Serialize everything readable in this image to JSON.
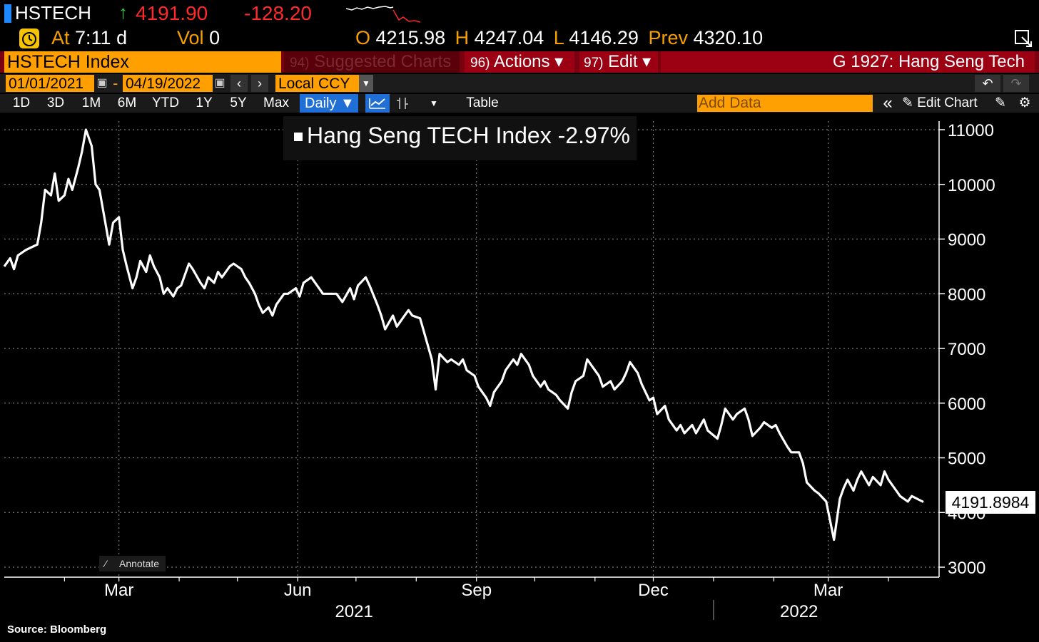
{
  "header": {
    "ticker": "HSTECH",
    "last_price": "4191.90",
    "change": "-128.20",
    "time_label": "At",
    "time_value": "7:11 d",
    "vol_label": "Vol",
    "vol_value": "0",
    "open_label": "O",
    "open_value": "4215.98",
    "high_label": "H",
    "high_value": "4247.04",
    "low_label": "L",
    "low_value": "4146.29",
    "prev_label": "Prev",
    "prev_value": "4320.10"
  },
  "command_bar": {
    "security": "HSTECH Index",
    "suggested_num": "94)",
    "suggested_label": "Suggested Charts",
    "actions_num": "96)",
    "actions_label": "Actions ▾",
    "edit_num": "97)",
    "edit_label": "Edit ▾",
    "chart_title": "G 1927: Hang Seng Tech"
  },
  "date_range": {
    "start": "01/01/2021",
    "separator": "-",
    "end": "04/19/2022",
    "currency": "Local CCY"
  },
  "periods": [
    "1D",
    "3D",
    "1M",
    "6M",
    "YTD",
    "1Y",
    "5Y",
    "Max"
  ],
  "toolbar": {
    "frequency": "Daily ▼",
    "table": "Table",
    "add_data_placeholder": "Add Data",
    "edit_chart": "Edit Chart"
  },
  "chart_data": {
    "type": "line",
    "legend": "Hang Seng TECH Index  -2.97%",
    "series": [
      {
        "name": "Hang Seng TECH Index",
        "points": [
          [
            "2021-01-01",
            8500
          ],
          [
            "2021-01-04",
            8650
          ],
          [
            "2021-01-06",
            8450
          ],
          [
            "2021-01-08",
            8700
          ],
          [
            "2021-01-12",
            8800
          ],
          [
            "2021-01-15",
            8850
          ],
          [
            "2021-01-18",
            8900
          ],
          [
            "2021-01-20",
            9300
          ],
          [
            "2021-01-22",
            9900
          ],
          [
            "2021-01-25",
            9800
          ],
          [
            "2021-01-27",
            10200
          ],
          [
            "2021-01-29",
            9700
          ],
          [
            "2021-02-01",
            9800
          ],
          [
            "2021-02-03",
            10100
          ],
          [
            "2021-02-05",
            9900
          ],
          [
            "2021-02-08",
            10300
          ],
          [
            "2021-02-10",
            10600
          ],
          [
            "2021-02-12",
            11000
          ],
          [
            "2021-02-15",
            10700
          ],
          [
            "2021-02-17",
            10000
          ],
          [
            "2021-02-19",
            9900
          ],
          [
            "2021-02-22",
            9300
          ],
          [
            "2021-02-24",
            8900
          ],
          [
            "2021-02-26",
            9300
          ],
          [
            "2021-03-01",
            9400
          ],
          [
            "2021-03-03",
            8800
          ],
          [
            "2021-03-05",
            8500
          ],
          [
            "2021-03-08",
            8100
          ],
          [
            "2021-03-10",
            8300
          ],
          [
            "2021-03-12",
            8600
          ],
          [
            "2021-03-15",
            8400
          ],
          [
            "2021-03-17",
            8700
          ],
          [
            "2021-03-19",
            8500
          ],
          [
            "2021-03-22",
            8300
          ],
          [
            "2021-03-24",
            8000
          ],
          [
            "2021-03-26",
            8100
          ],
          [
            "2021-03-29",
            7950
          ],
          [
            "2021-03-31",
            8100
          ],
          [
            "2021-04-02",
            8150
          ],
          [
            "2021-04-06",
            8550
          ],
          [
            "2021-04-08",
            8450
          ],
          [
            "2021-04-12",
            8200
          ],
          [
            "2021-04-14",
            8100
          ],
          [
            "2021-04-16",
            8300
          ],
          [
            "2021-04-19",
            8200
          ],
          [
            "2021-04-21",
            8400
          ],
          [
            "2021-04-23",
            8300
          ],
          [
            "2021-04-27",
            8500
          ],
          [
            "2021-04-29",
            8550
          ],
          [
            "2021-05-03",
            8450
          ],
          [
            "2021-05-05",
            8300
          ],
          [
            "2021-05-07",
            8200
          ],
          [
            "2021-05-10",
            8000
          ],
          [
            "2021-05-12",
            7800
          ],
          [
            "2021-05-14",
            7650
          ],
          [
            "2021-05-17",
            7750
          ],
          [
            "2021-05-19",
            7600
          ],
          [
            "2021-05-21",
            7800
          ],
          [
            "2021-05-25",
            8000
          ],
          [
            "2021-05-27",
            8000
          ],
          [
            "2021-05-31",
            8100
          ],
          [
            "2021-06-02",
            7950
          ],
          [
            "2021-06-04",
            8200
          ],
          [
            "2021-06-08",
            8300
          ],
          [
            "2021-06-10",
            8200
          ],
          [
            "2021-06-14",
            8000
          ],
          [
            "2021-06-17",
            8000
          ],
          [
            "2021-06-21",
            8000
          ],
          [
            "2021-06-24",
            7850
          ],
          [
            "2021-06-28",
            8100
          ],
          [
            "2021-06-30",
            7900
          ],
          [
            "2021-07-02",
            8150
          ],
          [
            "2021-07-06",
            8300
          ],
          [
            "2021-07-08",
            8150
          ],
          [
            "2021-07-12",
            7800
          ],
          [
            "2021-07-14",
            7600
          ],
          [
            "2021-07-16",
            7350
          ],
          [
            "2021-07-20",
            7600
          ],
          [
            "2021-07-22",
            7400
          ],
          [
            "2021-07-26",
            7600
          ],
          [
            "2021-07-28",
            7700
          ],
          [
            "2021-07-30",
            7600
          ],
          [
            "2021-08-03",
            7550
          ],
          [
            "2021-08-05",
            7300
          ],
          [
            "2021-08-09",
            6800
          ],
          [
            "2021-08-11",
            6250
          ],
          [
            "2021-08-13",
            6900
          ],
          [
            "2021-08-17",
            6750
          ],
          [
            "2021-08-19",
            6800
          ],
          [
            "2021-08-23",
            6700
          ],
          [
            "2021-08-25",
            6800
          ],
          [
            "2021-08-27",
            6600
          ],
          [
            "2021-08-31",
            6500
          ],
          [
            "2021-09-02",
            6300
          ],
          [
            "2021-09-06",
            6100
          ],
          [
            "2021-09-08",
            5950
          ],
          [
            "2021-09-10",
            6200
          ],
          [
            "2021-09-14",
            6400
          ],
          [
            "2021-09-16",
            6600
          ],
          [
            "2021-09-20",
            6800
          ],
          [
            "2021-09-22",
            6700
          ],
          [
            "2021-09-24",
            6900
          ],
          [
            "2021-09-28",
            6700
          ],
          [
            "2021-09-30",
            6500
          ],
          [
            "2021-10-04",
            6300
          ],
          [
            "2021-10-06",
            6400
          ],
          [
            "2021-10-08",
            6250
          ],
          [
            "2021-10-12",
            6150
          ],
          [
            "2021-10-14",
            6050
          ],
          [
            "2021-10-18",
            5900
          ],
          [
            "2021-10-20",
            6200
          ],
          [
            "2021-10-22",
            6400
          ],
          [
            "2021-10-26",
            6500
          ],
          [
            "2021-10-28",
            6800
          ],
          [
            "2021-11-01",
            6600
          ],
          [
            "2021-11-03",
            6500
          ],
          [
            "2021-11-05",
            6300
          ],
          [
            "2021-11-09",
            6400
          ],
          [
            "2021-11-11",
            6250
          ],
          [
            "2021-11-15",
            6400
          ],
          [
            "2021-11-17",
            6550
          ],
          [
            "2021-11-19",
            6750
          ],
          [
            "2021-11-23",
            6550
          ],
          [
            "2021-11-25",
            6350
          ],
          [
            "2021-11-29",
            6050
          ],
          [
            "2021-12-01",
            6100
          ],
          [
            "2021-12-03",
            5800
          ],
          [
            "2021-12-07",
            5950
          ],
          [
            "2021-12-09",
            5700
          ],
          [
            "2021-12-13",
            5500
          ],
          [
            "2021-12-15",
            5600
          ],
          [
            "2021-12-17",
            5450
          ],
          [
            "2021-12-21",
            5600
          ],
          [
            "2021-12-23",
            5450
          ],
          [
            "2021-12-27",
            5700
          ],
          [
            "2021-12-29",
            5500
          ],
          [
            "2022-01-03",
            5350
          ],
          [
            "2022-01-05",
            5600
          ],
          [
            "2022-01-07",
            5900
          ],
          [
            "2022-01-11",
            5700
          ],
          [
            "2022-01-13",
            5800
          ],
          [
            "2022-01-17",
            5900
          ],
          [
            "2022-01-19",
            5700
          ],
          [
            "2022-01-21",
            5400
          ],
          [
            "2022-01-25",
            5550
          ],
          [
            "2022-01-27",
            5650
          ],
          [
            "2022-01-31",
            5550
          ],
          [
            "2022-02-02",
            5600
          ],
          [
            "2022-02-04",
            5450
          ],
          [
            "2022-02-08",
            5200
          ],
          [
            "2022-02-10",
            5100
          ],
          [
            "2022-02-14",
            5100
          ],
          [
            "2022-02-16",
            4900
          ],
          [
            "2022-02-18",
            4550
          ],
          [
            "2022-02-22",
            4400
          ],
          [
            "2022-02-24",
            4350
          ],
          [
            "2022-02-28",
            4200
          ],
          [
            "2022-03-02",
            3850
          ],
          [
            "2022-03-04",
            3500
          ],
          [
            "2022-03-07",
            4250
          ],
          [
            "2022-03-09",
            4450
          ],
          [
            "2022-03-11",
            4600
          ],
          [
            "2022-03-14",
            4400
          ],
          [
            "2022-03-16",
            4600
          ],
          [
            "2022-03-18",
            4750
          ],
          [
            "2022-03-22",
            4500
          ],
          [
            "2022-03-24",
            4650
          ],
          [
            "2022-03-28",
            4500
          ],
          [
            "2022-03-30",
            4750
          ],
          [
            "2022-04-01",
            4600
          ],
          [
            "2022-04-05",
            4400
          ],
          [
            "2022-04-07",
            4300
          ],
          [
            "2022-04-11",
            4200
          ],
          [
            "2022-04-13",
            4300
          ],
          [
            "2022-04-19",
            4191.8984
          ]
        ]
      }
    ],
    "x_ticks": [
      {
        "label": "Mar",
        "date": "2021-03-01"
      },
      {
        "label": "Jun",
        "date": "2021-06-01"
      },
      {
        "label": "Sep",
        "date": "2021-09-01"
      },
      {
        "label": "Dec",
        "date": "2021-12-01"
      },
      {
        "label": "Mar",
        "date": "2022-03-01"
      }
    ],
    "year_labels": [
      {
        "label": "2021",
        "date": "2021-06-30"
      },
      {
        "label": "2022",
        "date": "2022-02-14"
      }
    ],
    "y_ticks": [
      3000,
      4000,
      5000,
      6000,
      7000,
      8000,
      9000,
      10000,
      11000
    ],
    "ylim": [
      2800,
      11200
    ],
    "xlim": [
      "2021-01-01",
      "2022-04-19"
    ],
    "grid": true,
    "last_value_label": "4191.8984",
    "line_color": "#ffffff"
  },
  "annotate_label": "Annotate",
  "source": "Source:  Bloomberg"
}
